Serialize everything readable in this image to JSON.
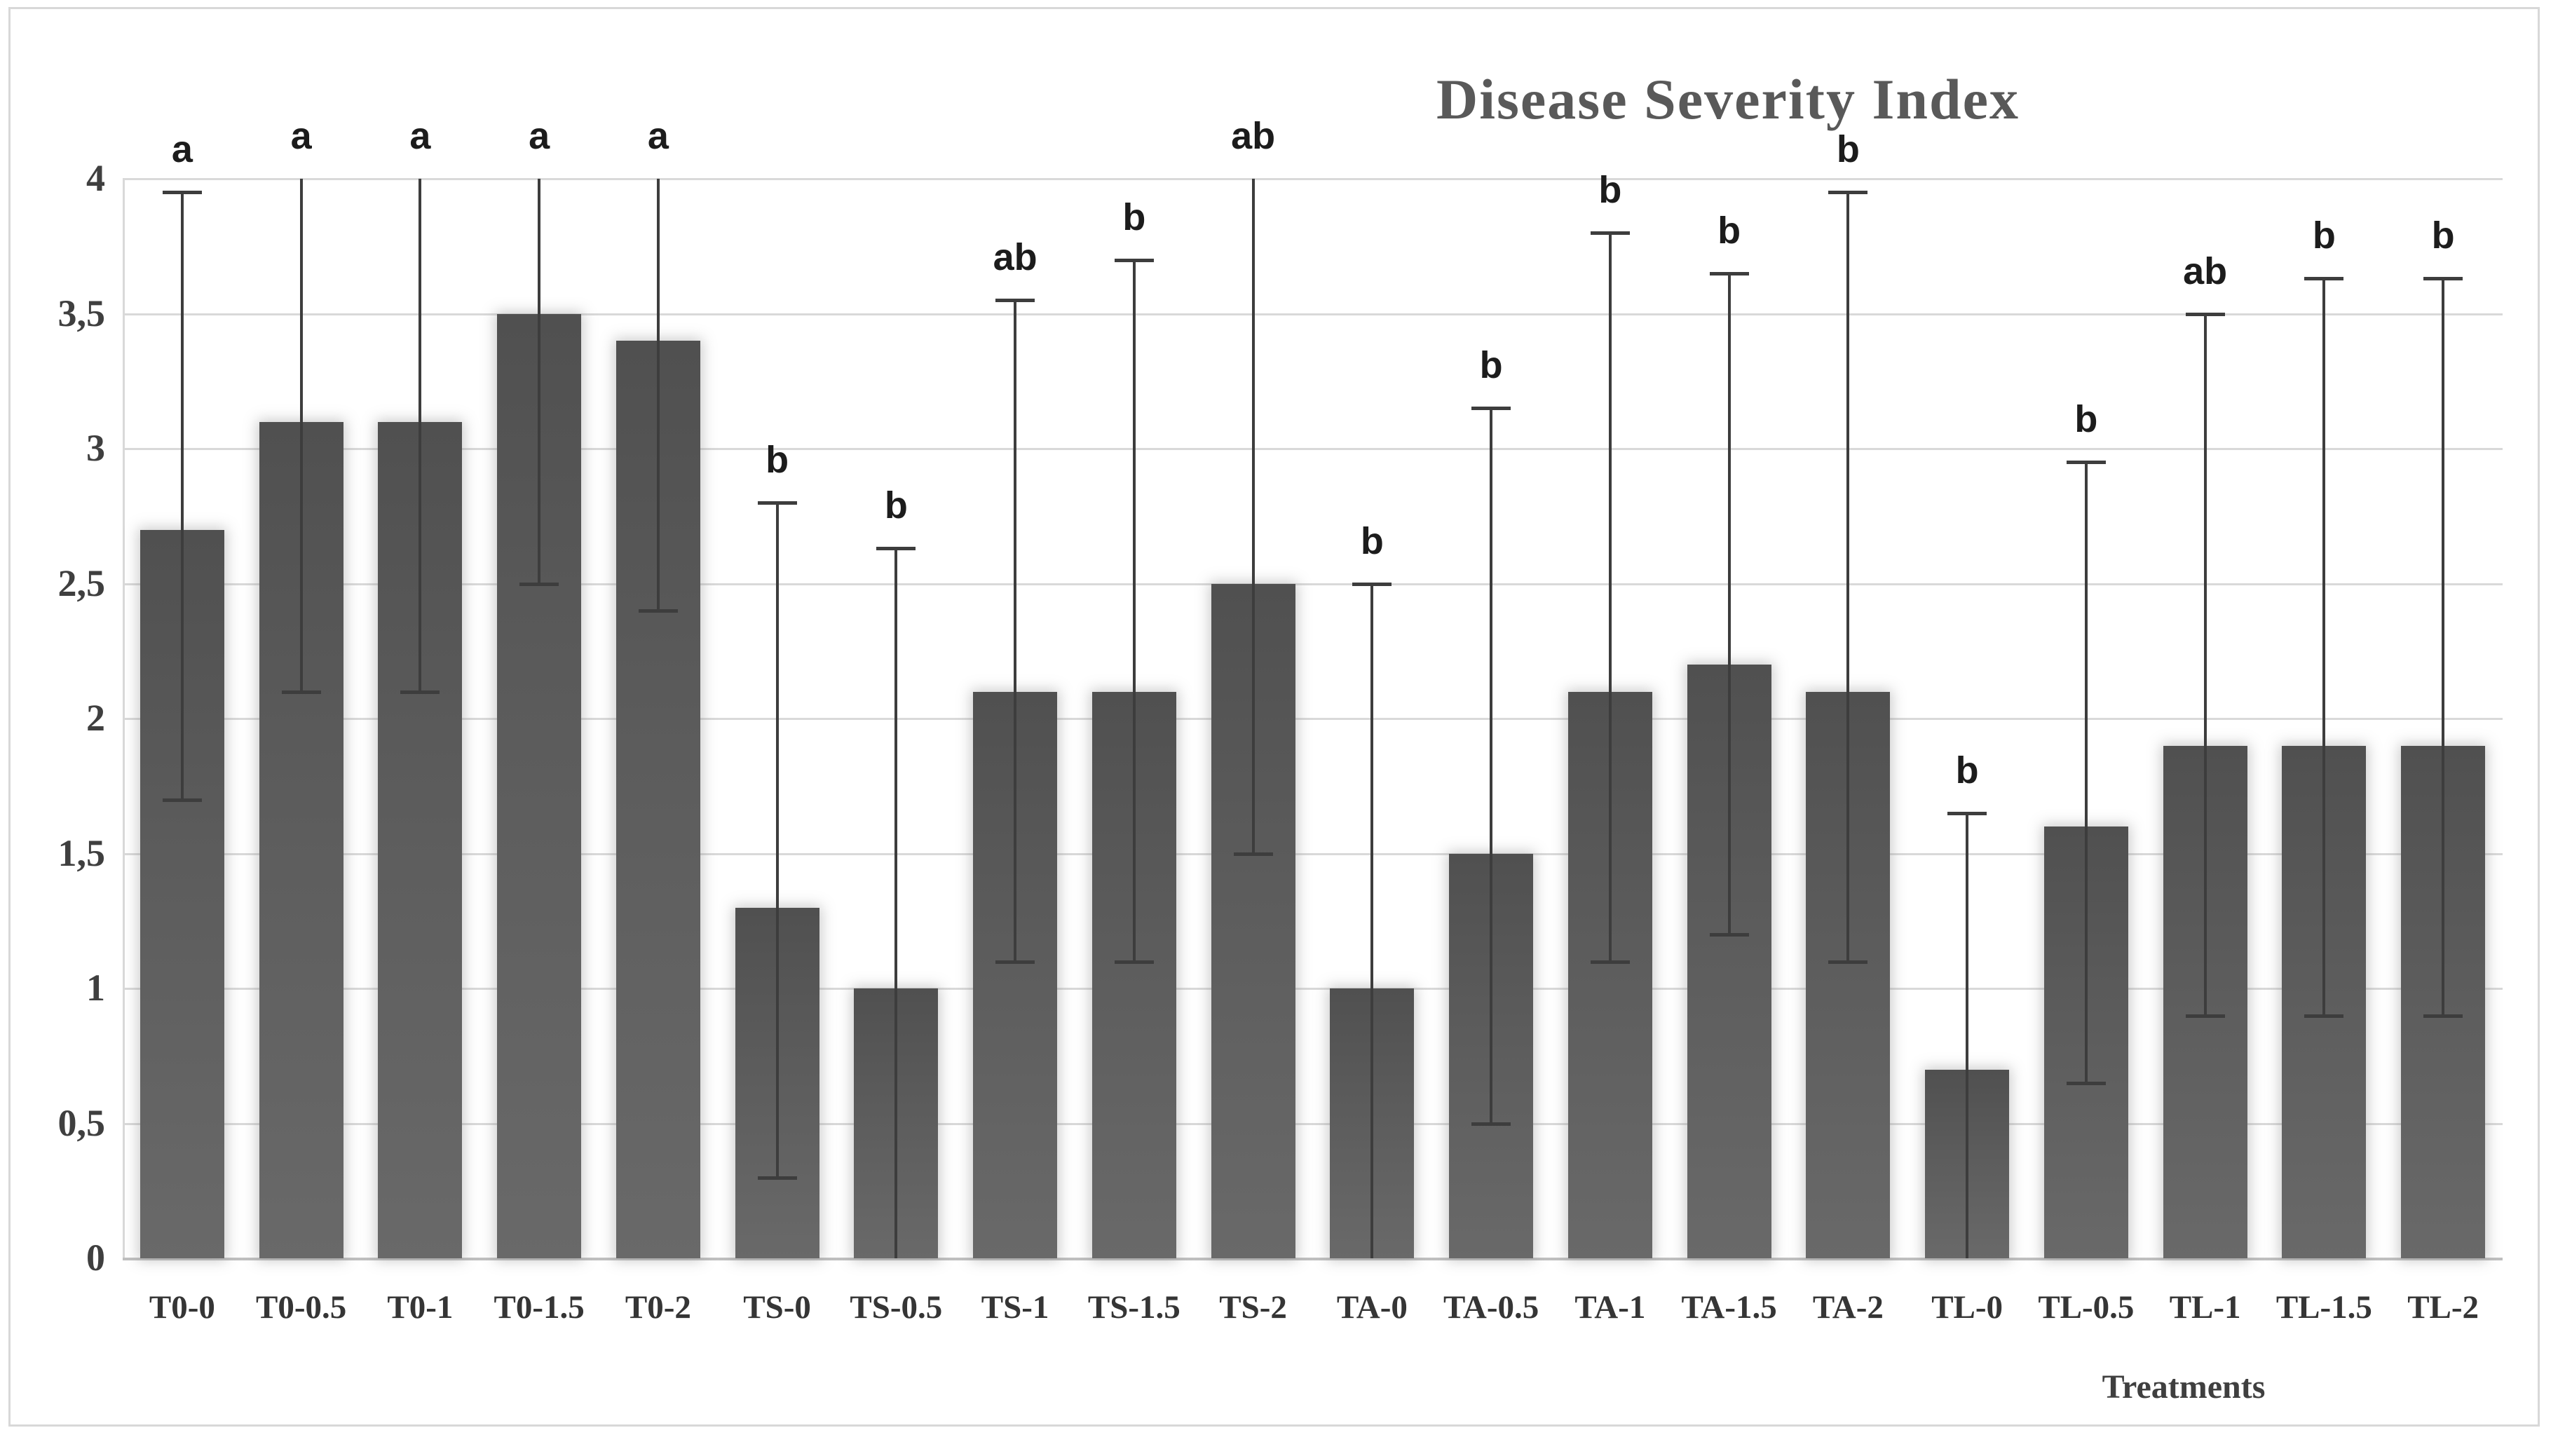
{
  "chart_data": {
    "type": "bar",
    "title": "Disease Severity Index",
    "xlabel": "Treatments",
    "ylabel": "",
    "ylim": [
      0,
      4.3
    ],
    "ytick_step": 0.5,
    "decimal_separator": ",",
    "grid": true,
    "legend": "none",
    "yticks": [
      {
        "value": 0,
        "label": "0"
      },
      {
        "value": 0.5,
        "label": "0,5"
      },
      {
        "value": 1,
        "label": "1"
      },
      {
        "value": 1.5,
        "label": "1,5"
      },
      {
        "value": 2,
        "label": "2"
      },
      {
        "value": 2.5,
        "label": "2,5"
      },
      {
        "value": 3,
        "label": "3"
      },
      {
        "value": 3.5,
        "label": "3,5"
      },
      {
        "value": 4,
        "label": "4"
      }
    ],
    "categories": [
      "T0-0",
      "T0-0.5",
      "T0-1",
      "T0-1.5",
      "T0-2",
      "TS-0",
      "TS-0.5",
      "TS-1",
      "TS-1.5",
      "TS-2",
      "TA-0",
      "TA-0.5",
      "TA-1",
      "TA-1.5",
      "TA-2",
      "TL-0",
      "TL-0.5",
      "TL-1",
      "TL-1.5",
      "TL-2"
    ],
    "values": [
      2.7,
      3.1,
      3.1,
      3.5,
      3.4,
      1.3,
      1.0,
      2.1,
      2.1,
      2.5,
      1.0,
      1.5,
      2.1,
      2.2,
      2.1,
      0.7,
      1.6,
      1.9,
      1.9,
      1.9
    ],
    "significance_letters": [
      "a",
      "a",
      "a",
      "a",
      "a",
      "b",
      "b",
      "ab",
      "b",
      "ab",
      "b",
      "b",
      "b",
      "b",
      "b",
      "b",
      "b",
      "ab",
      "b",
      "b"
    ],
    "error_high": [
      3.95,
      4.1,
      4.1,
      4.15,
      4.1,
      2.8,
      2.63,
      3.55,
      3.7,
      4.05,
      2.5,
      3.15,
      3.8,
      3.65,
      3.95,
      1.65,
      2.95,
      3.5,
      3.63,
      3.63
    ],
    "error_low": [
      1.7,
      2.1,
      2.1,
      2.5,
      2.4,
      0.3,
      0.0,
      1.1,
      1.1,
      1.5,
      0.0,
      0.5,
      1.1,
      1.2,
      1.1,
      0.0,
      0.65,
      0.9,
      0.9,
      0.9
    ],
    "error_clip_max": 4.0
  },
  "style": {
    "bar_color": "#595959",
    "error_bar_color": "#3d3d3d",
    "gridline_color": "#d9d9d9",
    "axis_line_color": "#bfbfbf",
    "title_color": "#595959",
    "tick_label_color": "#3f3f3f",
    "letter_color": "#1c1c1c",
    "frame_border_color": "#d8d8d8",
    "background_color": "#ffffff"
  }
}
